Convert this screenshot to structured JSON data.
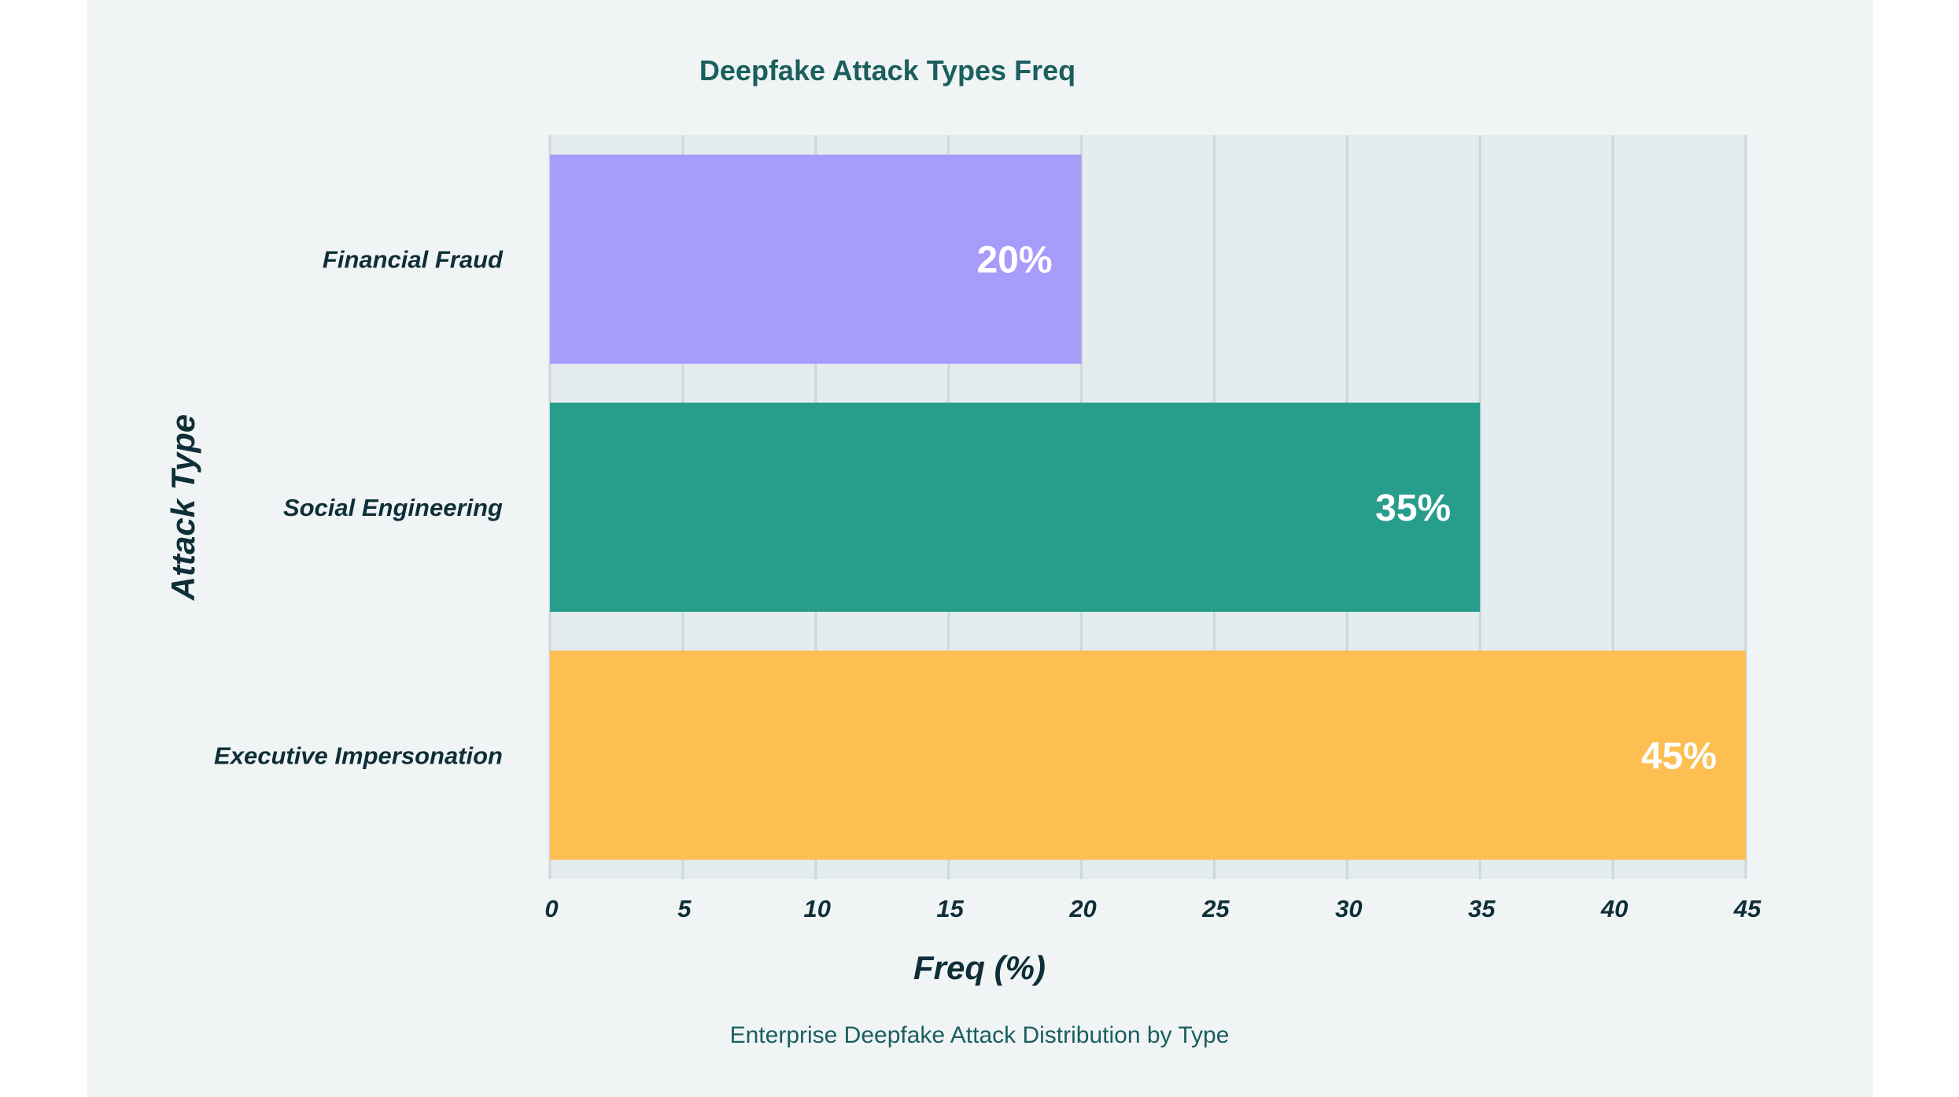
{
  "chart_data": {
    "type": "bar",
    "orientation": "horizontal",
    "title": "Deepfake Attack Types Freq",
    "xlabel": "Freq (%)",
    "ylabel": "Attack Type",
    "caption": "Enterprise Deepfake Attack Distribution by Type",
    "categories": [
      "Financial Fraud",
      "Social Engineering",
      "Executive Impersonation"
    ],
    "values": [
      20,
      35,
      45
    ],
    "data_labels": [
      "20%",
      "35%",
      "45%"
    ],
    "colors": [
      "#a89cfb",
      "#279d8c",
      "#fdbe52"
    ],
    "xlim": [
      0,
      45
    ],
    "xticks": [
      0,
      5,
      10,
      15,
      20,
      25,
      30,
      35,
      40,
      45
    ],
    "grid": true,
    "legend": "none"
  },
  "theme": {
    "panel_background": "#f0f4f5",
    "plot_background": "#e4ecee",
    "grid_color": "#cbd8da",
    "text_dark": "#0f2f38",
    "text_teal": "#1b5e5e",
    "bar_label_color": "#ffffff"
  }
}
